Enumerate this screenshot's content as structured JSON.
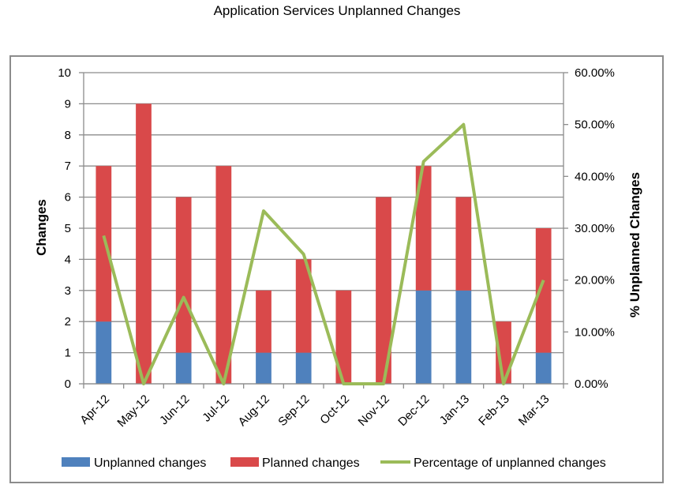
{
  "title": "Application Services Unplanned Changes",
  "chart_data": {
    "type": "bar",
    "stacked": true,
    "title": "Application Services Unplanned Changes",
    "categories": [
      "Apr-12",
      "May-12",
      "Jun-12",
      "Jul-12",
      "Aug-12",
      "Sep-12",
      "Oct-12",
      "Nov-12",
      "Dec-12",
      "Jan-13",
      "Feb-13",
      "Mar-13"
    ],
    "series": [
      {
        "name": "Unplanned changes",
        "type": "bar",
        "axis": "left",
        "color": "#4f81bd",
        "values": [
          2,
          0,
          1,
          0,
          1,
          1,
          0,
          0,
          3,
          3,
          0,
          1
        ]
      },
      {
        "name": "Planned changes",
        "type": "bar",
        "axis": "left",
        "color": "#d9494a",
        "values": [
          5,
          9,
          5,
          7,
          2,
          3,
          3,
          6,
          4,
          3,
          2,
          4
        ]
      },
      {
        "name": "Percentage of unplanned changes",
        "type": "line",
        "axis": "right",
        "color": "#9bbb59",
        "values": [
          28.57,
          0,
          16.67,
          0,
          33.33,
          25,
          0,
          0,
          42.86,
          50,
          0,
          20
        ]
      }
    ],
    "ylabel": "Changes",
    "ylabel_right": "% Unplanned Changes",
    "ylim": [
      0,
      10
    ],
    "y_ticks": [
      "0",
      "1",
      "2",
      "3",
      "4",
      "5",
      "6",
      "7",
      "8",
      "9",
      "10"
    ],
    "ylim_right": [
      0,
      60
    ],
    "y_ticks_right": [
      "0.00%",
      "10.00%",
      "20.00%",
      "30.00%",
      "40.00%",
      "50.00%",
      "60.00%"
    ],
    "grid": "horizontal",
    "legend_position": "bottom"
  }
}
